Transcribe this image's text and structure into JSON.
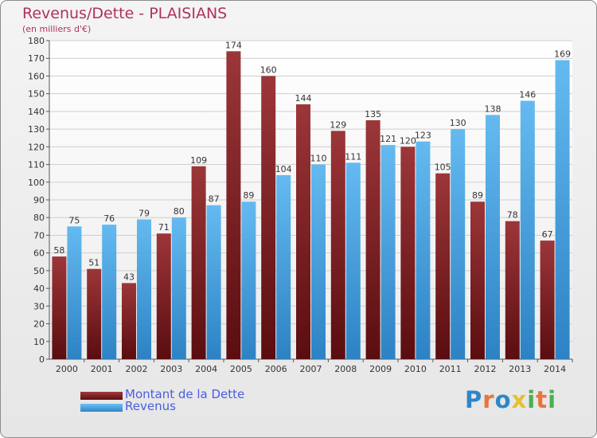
{
  "title": "Revenus/Dette - PLAISIANS",
  "subtitle": "(en milliers d'€)",
  "legend": [
    {
      "label": "Montant de la Dette",
      "color": "#7a1f22"
    },
    {
      "label": "Revenus",
      "color": "#4aa6e6"
    }
  ],
  "logo": {
    "text": "Proxiti",
    "colors": [
      "#2e86c9",
      "#e8743b",
      "#2e86c9",
      "#e6c12e",
      "#4caf50",
      "#e8743b",
      "#4caf50"
    ]
  },
  "chart_data": {
    "type": "bar",
    "categories": [
      "2000",
      "2001",
      "2002",
      "2003",
      "2004",
      "2005",
      "2006",
      "2007",
      "2008",
      "2009",
      "2010",
      "2011",
      "2012",
      "2013",
      "2014"
    ],
    "series": [
      {
        "name": "Montant de la Dette",
        "values": [
          58,
          51,
          43,
          71,
          109,
          174,
          160,
          144,
          129,
          135,
          120,
          105,
          89,
          78,
          67
        ],
        "color": "#7a1f22"
      },
      {
        "name": "Revenus",
        "values": [
          75,
          76,
          79,
          80,
          87,
          89,
          104,
          110,
          111,
          121,
          123,
          130,
          138,
          146,
          169
        ],
        "color": "#4aa6e6"
      }
    ],
    "ylim": [
      0,
      180
    ],
    "yticks": [
      0,
      10,
      20,
      30,
      40,
      50,
      60,
      70,
      80,
      90,
      100,
      110,
      120,
      130,
      140,
      150,
      160,
      170,
      180
    ],
    "grid": true,
    "data_labels": true,
    "legend_position": "bottom-left"
  }
}
